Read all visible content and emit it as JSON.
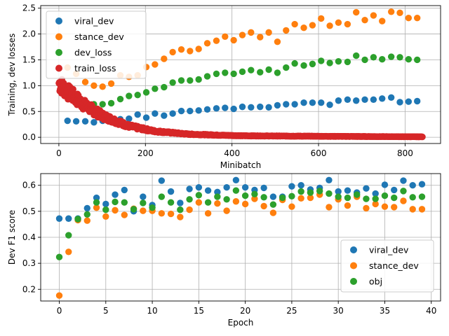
{
  "colors": {
    "blue": "#1f77b4",
    "orange": "#ff7f0e",
    "green": "#2ca02c",
    "red": "#d62728"
  },
  "chart_data": [
    {
      "type": "scatter",
      "xlabel": "Minibatch",
      "ylabel": "Training, dev losses",
      "xlim": [
        -42,
        882
      ],
      "ylim": [
        -0.12,
        2.55
      ],
      "xticks": [
        0,
        200,
        400,
        600,
        800
      ],
      "yticks": [
        0.0,
        0.5,
        1.0,
        1.5,
        2.0,
        2.5
      ],
      "ytick_labels": [
        "0.0",
        "0.5",
        "1.0",
        "1.5",
        "2.0",
        "2.5"
      ],
      "grid": true,
      "legend_position": "top-left",
      "series": [
        {
          "name": "viral_dev",
          "color": "blue",
          "x": [
            20,
            40,
            61,
            81,
            101,
            121,
            142,
            162,
            182,
            202,
            222,
            243,
            263,
            283,
            303,
            323,
            343,
            364,
            384,
            404,
            424,
            444,
            465,
            485,
            505,
            525,
            545,
            566,
            586,
            606,
            626,
            646,
            667,
            687,
            707,
            727,
            747,
            768,
            788,
            808,
            828
          ],
          "y": [
            0.32,
            0.31,
            0.31,
            0.29,
            0.32,
            0.33,
            0.35,
            0.36,
            0.44,
            0.38,
            0.46,
            0.42,
            0.46,
            0.51,
            0.51,
            0.52,
            0.54,
            0.56,
            0.57,
            0.55,
            0.59,
            0.58,
            0.59,
            0.58,
            0.62,
            0.64,
            0.64,
            0.67,
            0.67,
            0.67,
            0.63,
            0.71,
            0.73,
            0.71,
            0.73,
            0.73,
            0.75,
            0.77,
            0.68,
            0.69,
            0.7
          ]
        },
        {
          "name": "stance_dev",
          "color": "orange",
          "x": [
            20,
            40,
            61,
            81,
            101,
            121,
            142,
            162,
            182,
            202,
            222,
            243,
            263,
            283,
            303,
            323,
            343,
            364,
            384,
            404,
            424,
            444,
            465,
            485,
            505,
            525,
            545,
            566,
            586,
            606,
            626,
            646,
            667,
            687,
            707,
            727,
            747,
            768,
            788,
            808,
            828
          ],
          "y": [
            1.35,
            1.23,
            1.07,
            1.0,
            0.98,
            1.04,
            1.2,
            1.17,
            1.2,
            1.36,
            1.41,
            1.52,
            1.65,
            1.7,
            1.67,
            1.71,
            1.82,
            1.87,
            1.95,
            1.88,
            1.98,
            2.03,
            1.94,
            2.03,
            1.85,
            2.07,
            2.19,
            2.12,
            2.17,
            2.3,
            2.16,
            2.22,
            2.19,
            2.42,
            2.27,
            2.36,
            2.25,
            2.43,
            2.41,
            2.31,
            2.31
          ]
        },
        {
          "name": "dev_loss",
          "color": "green",
          "x": [
            20,
            40,
            61,
            81,
            101,
            121,
            142,
            162,
            182,
            202,
            222,
            243,
            263,
            283,
            303,
            323,
            343,
            364,
            384,
            404,
            424,
            444,
            465,
            485,
            505,
            525,
            545,
            566,
            586,
            606,
            626,
            646,
            667,
            687,
            707,
            727,
            747,
            768,
            788,
            808,
            828
          ],
          "y": [
            0.82,
            0.74,
            0.69,
            0.64,
            0.64,
            0.66,
            0.74,
            0.8,
            0.82,
            0.87,
            0.94,
            0.97,
            1.06,
            1.1,
            1.1,
            1.12,
            1.18,
            1.23,
            1.25,
            1.23,
            1.27,
            1.3,
            1.26,
            1.31,
            1.25,
            1.35,
            1.43,
            1.39,
            1.42,
            1.48,
            1.44,
            1.47,
            1.46,
            1.58,
            1.5,
            1.55,
            1.51,
            1.56,
            1.55,
            1.51,
            1.5
          ]
        }
      ],
      "train_loss": {
        "name": "train_loss",
        "color": "red",
        "x_start": 0,
        "x_end": 840,
        "count": 841,
        "decay_points": [
          [
            0,
            1.05
          ],
          [
            20,
            0.88
          ],
          [
            60,
            0.62
          ],
          [
            100,
            0.42
          ],
          [
            160,
            0.22
          ],
          [
            220,
            0.12
          ],
          [
            300,
            0.06
          ],
          [
            420,
            0.03
          ],
          [
            600,
            0.02
          ],
          [
            840,
            0.01
          ]
        ]
      }
    },
    {
      "type": "scatter",
      "xlabel": "Epoch",
      "ylabel": "Dev F1 score",
      "xlim": [
        -2,
        41
      ],
      "ylim": [
        0.155,
        0.645
      ],
      "xticks": [
        0,
        5,
        10,
        15,
        20,
        25,
        30,
        35,
        40
      ],
      "yticks": [
        0.2,
        0.3,
        0.4,
        0.5,
        0.6
      ],
      "ytick_labels": [
        "0.2",
        "0.3",
        "0.4",
        "0.5",
        "0.6"
      ],
      "grid": true,
      "legend_position": "bottom-right",
      "series": [
        {
          "name": "viral_dev",
          "color": "blue",
          "x": [
            0,
            1,
            2,
            3,
            4,
            5,
            6,
            7,
            8,
            9,
            10,
            11,
            12,
            13,
            14,
            15,
            16,
            17,
            18,
            19,
            20,
            21,
            22,
            23,
            24,
            25,
            26,
            27,
            28,
            29,
            30,
            31,
            32,
            33,
            34,
            35,
            36,
            37,
            38,
            39
          ],
          "y": [
            0.472,
            0.472,
            0.472,
            0.512,
            0.552,
            0.528,
            0.564,
            0.582,
            0.5,
            0.556,
            0.524,
            0.618,
            0.576,
            0.532,
            0.586,
            0.592,
            0.58,
            0.574,
            0.592,
            0.62,
            0.592,
            0.582,
            0.59,
            0.556,
            0.556,
            0.596,
            0.6,
            0.584,
            0.59,
            0.62,
            0.576,
            0.58,
            0.572,
            0.588,
            0.568,
            0.602,
            0.582,
            0.618,
            0.6,
            0.604
          ]
        },
        {
          "name": "stance_dev",
          "color": "orange",
          "x": [
            0,
            1,
            2,
            3,
            4,
            5,
            6,
            7,
            8,
            9,
            10,
            11,
            12,
            13,
            14,
            15,
            16,
            17,
            18,
            19,
            20,
            21,
            22,
            23,
            24,
            25,
            26,
            27,
            28,
            29,
            30,
            31,
            32,
            33,
            34,
            35,
            36,
            37,
            38,
            39
          ],
          "y": [
            0.176,
            0.344,
            0.466,
            0.464,
            0.514,
            0.48,
            0.504,
            0.486,
            0.51,
            0.502,
            0.502,
            0.492,
            0.49,
            0.478,
            0.506,
            0.534,
            0.492,
            0.53,
            0.502,
            0.538,
            0.528,
            0.548,
            0.52,
            0.494,
            0.544,
            0.518,
            0.55,
            0.552,
            0.564,
            0.516,
            0.546,
            0.522,
            0.556,
            0.512,
            0.528,
            0.518,
            0.516,
            0.54,
            0.508,
            0.508
          ]
        },
        {
          "name": "obj",
          "color": "green",
          "x": [
            0,
            1,
            2,
            3,
            4,
            5,
            6,
            7,
            8,
            9,
            10,
            11,
            12,
            13,
            14,
            15,
            16,
            17,
            18,
            19,
            20,
            21,
            22,
            23,
            24,
            25,
            26,
            27,
            28,
            29,
            30,
            31,
            32,
            33,
            34,
            35,
            36,
            37,
            38,
            39
          ],
          "y": [
            0.324,
            0.408,
            0.47,
            0.488,
            0.534,
            0.506,
            0.536,
            0.534,
            0.508,
            0.532,
            0.514,
            0.556,
            0.534,
            0.506,
            0.546,
            0.562,
            0.534,
            0.556,
            0.546,
            0.58,
            0.56,
            0.566,
            0.554,
            0.526,
            0.552,
            0.558,
            0.576,
            0.572,
            0.578,
            0.568,
            0.556,
            0.552,
            0.564,
            0.548,
            0.548,
            0.56,
            0.552,
            0.578,
            0.554,
            0.556
          ]
        }
      ]
    }
  ]
}
